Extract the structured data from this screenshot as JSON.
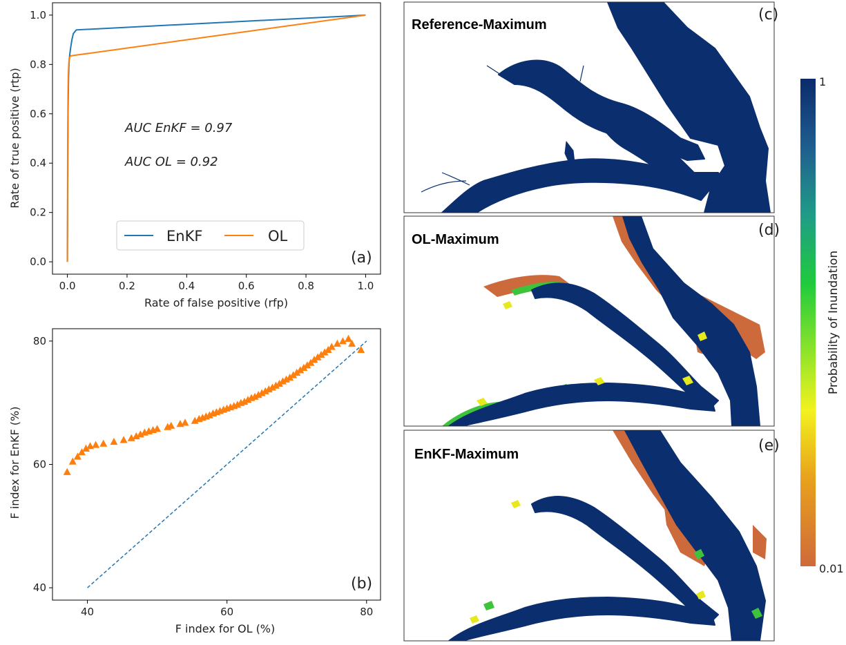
{
  "chart_data": [
    {
      "panel": "(a)",
      "type": "line",
      "xlabel": "Rate of false positive (rfp)",
      "ylabel": "Rate of true positive (rtp)",
      "xlim": [
        -0.05,
        1.05
      ],
      "ylim": [
        -0.05,
        1.05
      ],
      "xticks": [
        "0.0",
        "0.2",
        "0.4",
        "0.6",
        "0.8",
        "1.0"
      ],
      "yticks": [
        "0.0",
        "0.2",
        "0.4",
        "0.6",
        "0.8",
        "1.0"
      ],
      "legend_position": "bottom-center",
      "annotations": [
        "AUC EnKF = 0.97",
        "AUC OL = 0.92"
      ],
      "series": [
        {
          "name": "EnKF",
          "color": "#1f77b4",
          "x": [
            0,
            0.002,
            0.004,
            0.006,
            0.01,
            0.015,
            0.02,
            0.03,
            1.0
          ],
          "y": [
            0,
            0.6,
            0.75,
            0.82,
            0.86,
            0.9,
            0.925,
            0.94,
            1.0
          ]
        },
        {
          "name": "OL",
          "color": "#ff7f0e",
          "x": [
            0,
            0.001,
            0.002,
            0.003,
            0.005,
            0.008,
            0.012,
            1.0
          ],
          "y": [
            0,
            0.5,
            0.68,
            0.76,
            0.81,
            0.83,
            0.835,
            1.0
          ]
        }
      ]
    },
    {
      "panel": "(b)",
      "type": "scatter",
      "xlabel": "F index for OL (%)",
      "ylabel": "F index for EnKF (%)",
      "xlim": [
        35,
        82
      ],
      "ylim": [
        38,
        82
      ],
      "xticks": [
        40,
        60,
        80
      ],
      "yticks": [
        40,
        60,
        80
      ],
      "series": [
        {
          "marker": "triangle",
          "color": "#ff7f0e",
          "x": [
            37.1,
            37.9,
            38.6,
            39.2,
            39.8,
            40.4,
            41.2,
            42.3,
            43.8,
            45.2,
            46.3,
            47.0,
            47.6,
            48.2,
            48.8,
            49.4,
            50.0,
            51.5,
            52.0,
            53.3,
            54.0,
            55.4,
            56.0,
            56.5,
            57.0,
            57.5,
            58.0,
            58.5,
            59.0,
            59.5,
            60.0,
            60.5,
            61.0,
            61.5,
            62.0,
            62.5,
            63.0,
            63.5,
            64.0,
            64.5,
            65.0,
            65.5,
            66.0,
            66.5,
            67.0,
            67.5,
            68.0,
            68.5,
            69.0,
            69.5,
            70.0,
            70.5,
            71.0,
            71.5,
            72.0,
            72.5,
            73.0,
            73.5,
            74.0,
            74.5,
            75.0,
            75.8,
            76.6,
            77.4,
            77.9,
            79.2
          ],
          "y": [
            58.8,
            60.5,
            61.3,
            62.0,
            62.6,
            63.0,
            63.2,
            63.4,
            63.7,
            64.0,
            64.3,
            64.6,
            64.9,
            65.2,
            65.4,
            65.6,
            65.8,
            66.1,
            66.3,
            66.6,
            66.8,
            67.1,
            67.4,
            67.6,
            67.8,
            68.0,
            68.3,
            68.5,
            68.7,
            68.9,
            69.1,
            69.3,
            69.5,
            69.7,
            70.0,
            70.2,
            70.5,
            70.8,
            71.0,
            71.3,
            71.6,
            71.9,
            72.2,
            72.5,
            72.8,
            73.1,
            73.5,
            73.8,
            74.1,
            74.5,
            74.9,
            75.3,
            75.7,
            76.1,
            76.5,
            77.0,
            77.4,
            77.8,
            78.2,
            78.6,
            79.1,
            79.6,
            80.0,
            80.4,
            79.6,
            78.6
          ]
        },
        {
          "name": "1:1 line",
          "type": "dashed-line",
          "color": "#1f77b4",
          "x": [
            40,
            80
          ],
          "y": [
            40,
            80
          ]
        }
      ]
    }
  ],
  "maps": [
    {
      "title": "Reference-Maximum",
      "panel": "(c)"
    },
    {
      "title": "OL-Maximum",
      "panel": "(d)"
    },
    {
      "title": "EnKF-Maximum",
      "panel": "(e)"
    }
  ],
  "colorbar": {
    "label": "Probability of Inundation",
    "max_label": "1",
    "min_label": "0.01",
    "colors": [
      "#0b2a6b",
      "#1f6c8c",
      "#1fa080",
      "#1fc83c",
      "#7fe22a",
      "#f2f21e",
      "#e9a21a",
      "#d06a38"
    ]
  }
}
